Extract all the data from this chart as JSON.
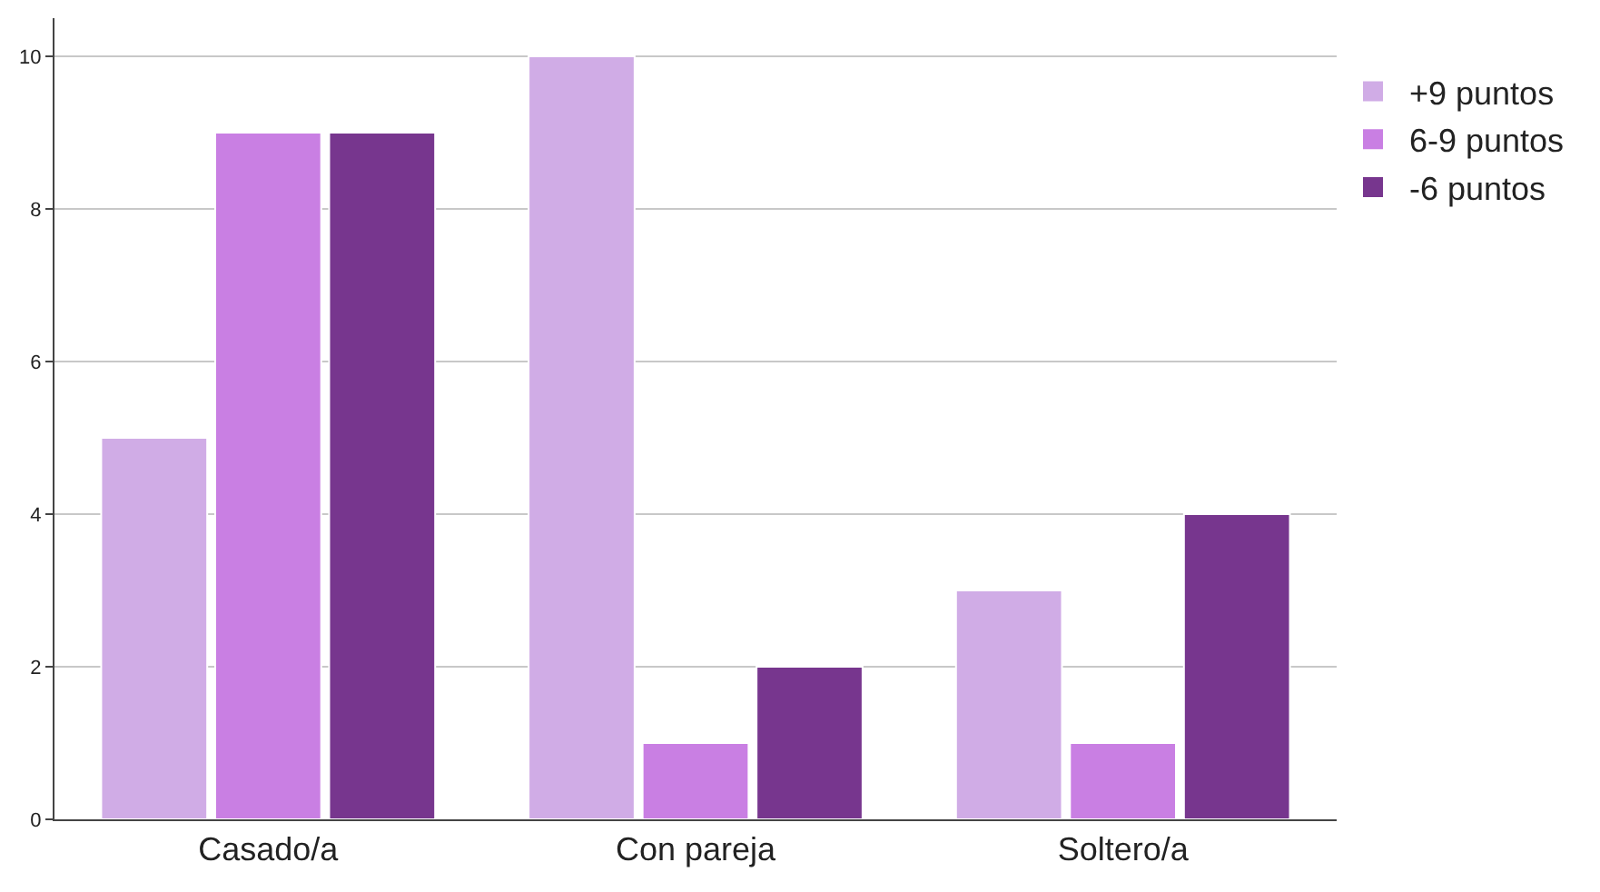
{
  "chart_data": {
    "type": "bar",
    "categories": [
      "Casado/a",
      "Con pareja",
      "Soltero/a"
    ],
    "series": [
      {
        "name": "+9 puntos",
        "color": "#d0ace6",
        "values": [
          5,
          10,
          3
        ]
      },
      {
        "name": "6-9 puntos",
        "color": "#c97fe3",
        "values": [
          9,
          1,
          1
        ]
      },
      {
        "name": "-6 puntos",
        "color": "#77368e",
        "values": [
          9,
          2,
          4
        ]
      }
    ],
    "ylim": [
      0,
      10.5
    ],
    "yticks": [
      0,
      2,
      4,
      6,
      8,
      10
    ],
    "grid": "y",
    "legend": "top right"
  }
}
